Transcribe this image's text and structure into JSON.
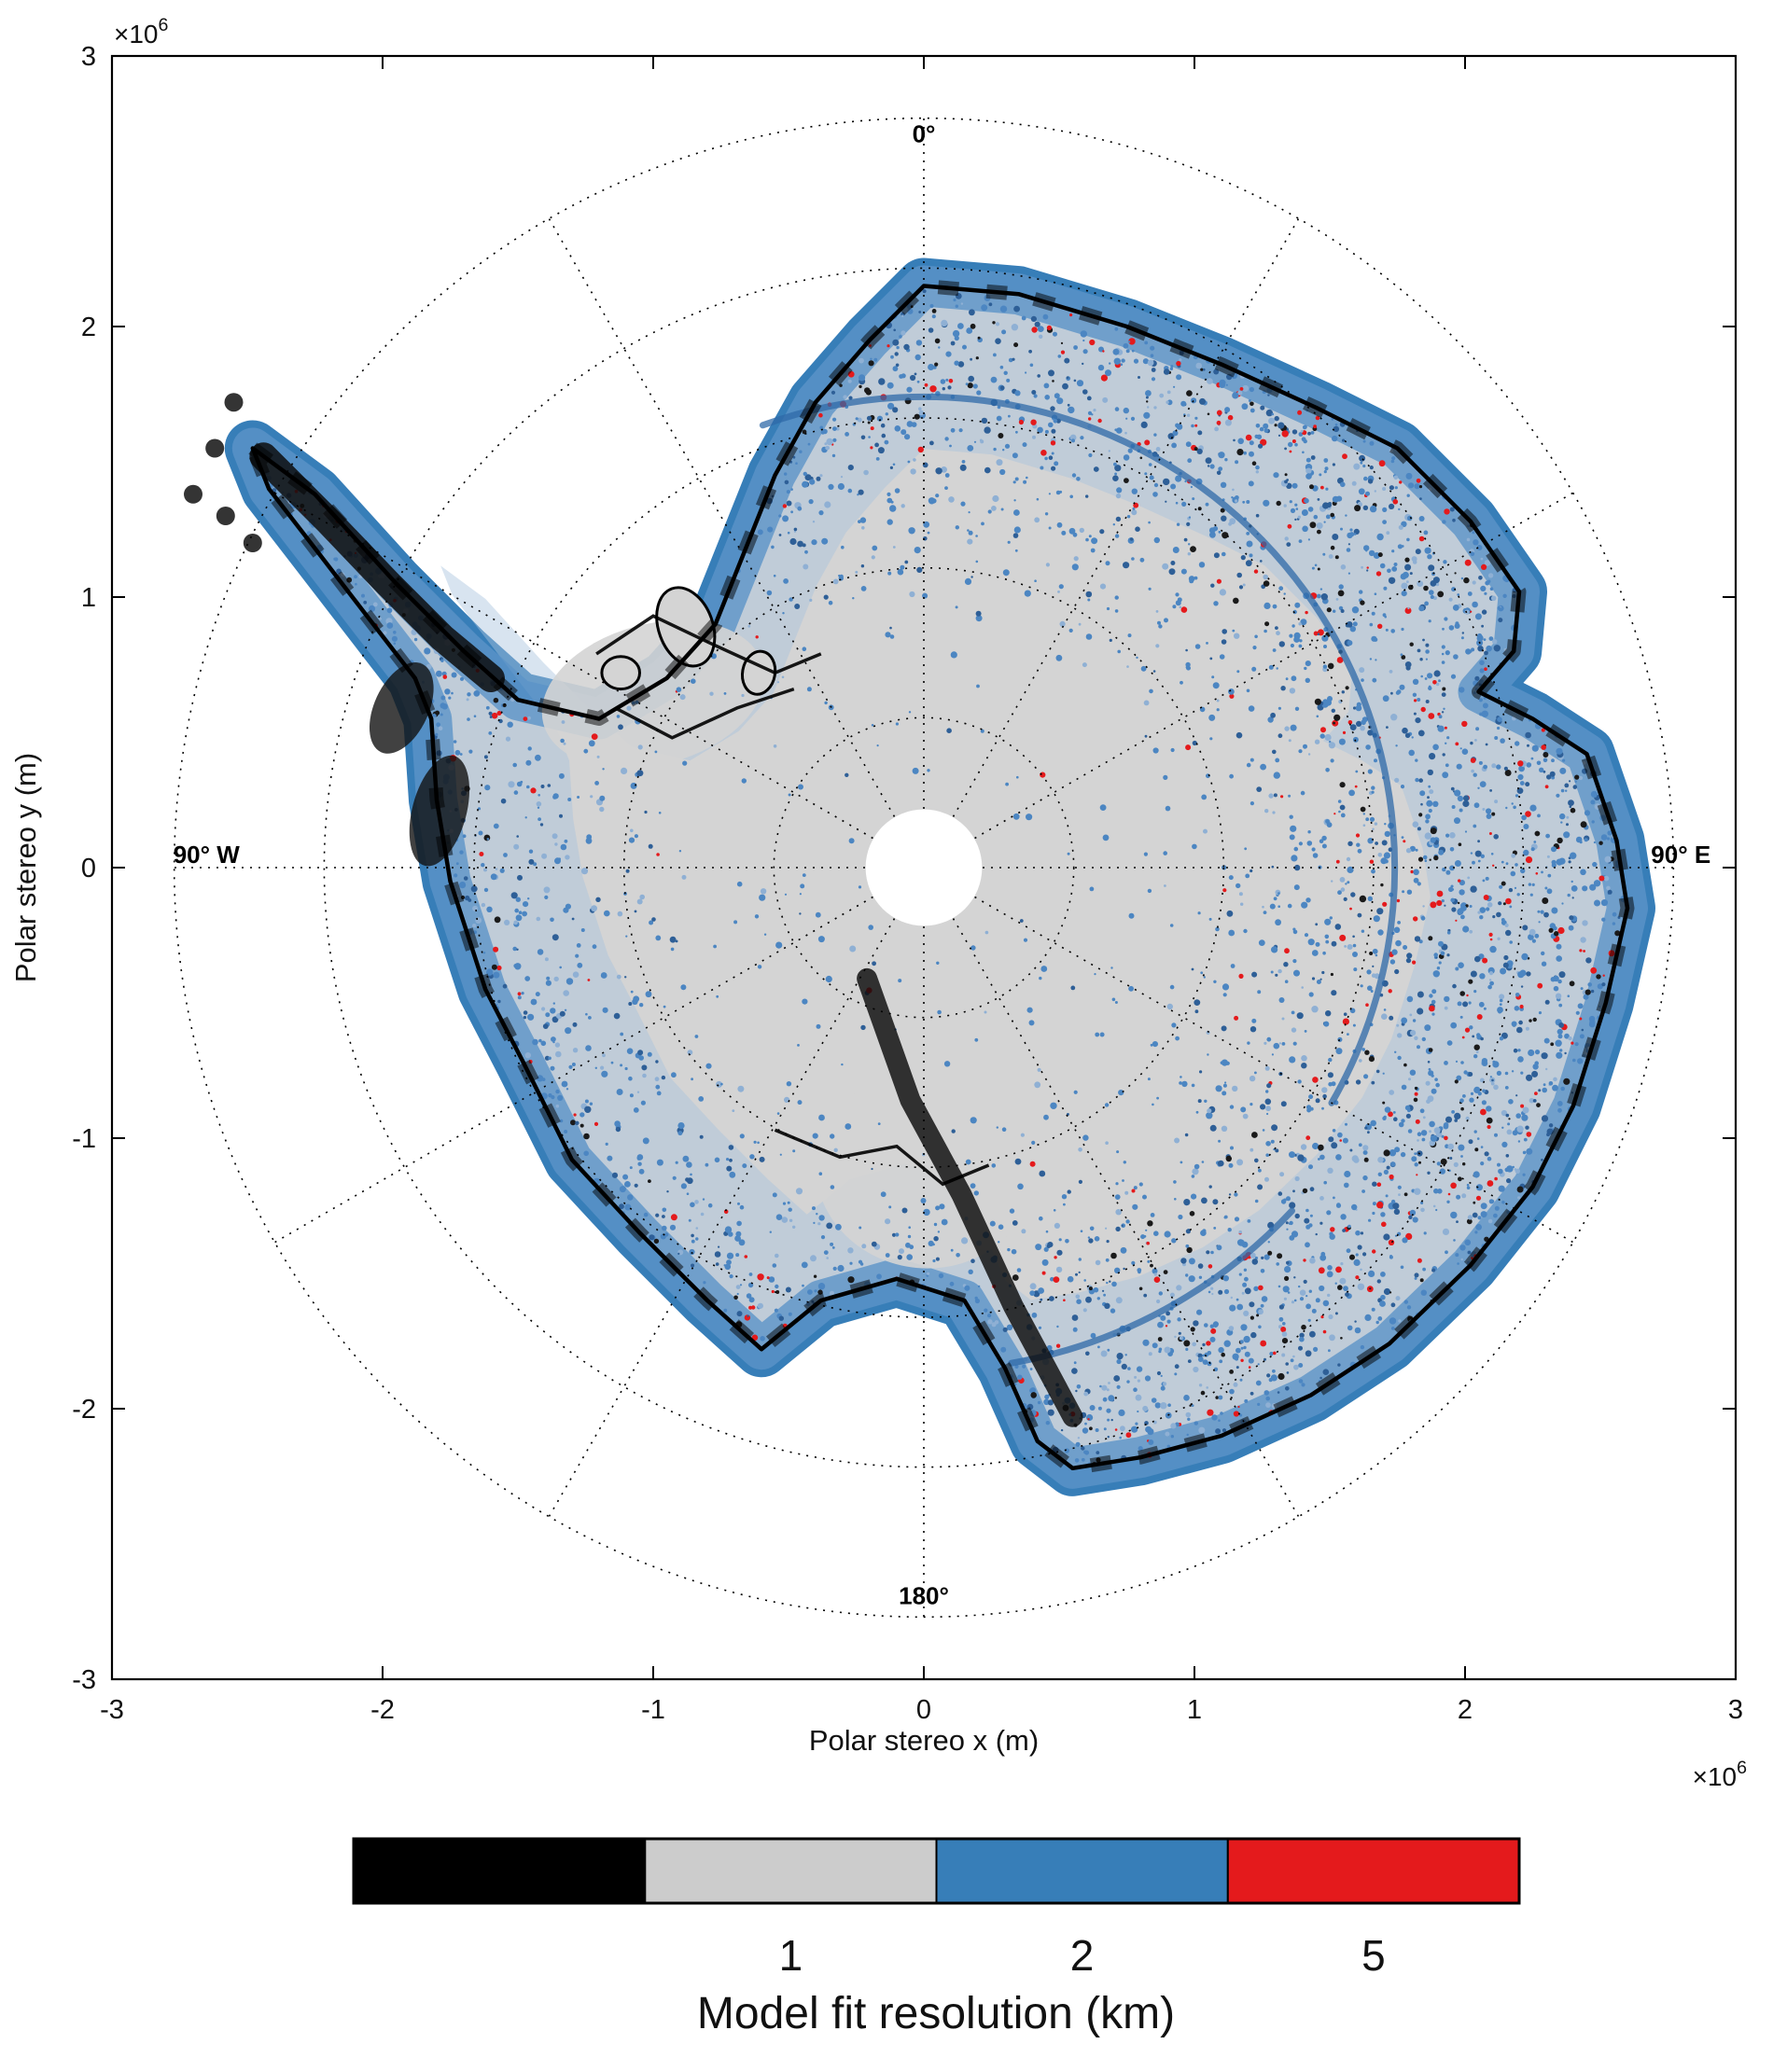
{
  "chart_data": {
    "type": "heatmap",
    "title": "",
    "xlabel": "Polar stereo x (m)",
    "ylabel": "Polar stereo y (m)",
    "axis_exponent": "×10^6",
    "xlim": [
      -3000000,
      3000000
    ],
    "ylim": [
      -3000000,
      3000000
    ],
    "x_ticks": [
      "-3",
      "-2",
      "-1",
      "0",
      "1",
      "2",
      "3"
    ],
    "y_ticks": [
      "-3",
      "-2",
      "-1",
      "0",
      "1",
      "2",
      "3"
    ],
    "grid": "polar dotted graticule over cartesian box",
    "polar_grid": {
      "circle_radii_1e6": [
        0.554,
        1.108,
        1.662,
        2.216,
        2.77
      ],
      "ray_step_deg": 30,
      "labels": [
        {
          "text": "0°",
          "pos": "top"
        },
        {
          "text": "90° E",
          "pos": "right"
        },
        {
          "text": "180°",
          "pos": "bottom"
        },
        {
          "text": "90° W",
          "pos": "left"
        }
      ]
    },
    "colorbar": {
      "label": "Model fit resolution (km)",
      "position": "bottom",
      "segments": [
        {
          "color": "#000000",
          "tick": ""
        },
        {
          "color": "#cccccc",
          "tick": "1"
        },
        {
          "color": "#377eb8",
          "tick": "2"
        },
        {
          "color": "#e41a1c",
          "tick": "5"
        }
      ],
      "sub_divider_fraction": 0.155
    },
    "map": {
      "region": "Antarctica",
      "projection": "polar stereographic",
      "units": "1e6 m",
      "pole_hole_radius_1e6": 0.215,
      "colors": {
        "interior": "#d4d4d4",
        "margin_band": "#377eb8",
        "margin_band_inner": "#5b93c8",
        "ring_wash": "#a9c3dd",
        "speckle_red": "#e41a1c",
        "speckle_dark_blue": "#2e5f97",
        "speckle_blue": "#4c86c2",
        "coast": "#000000"
      },
      "outline_1e6": [
        [
          -2.48,
          1.55
        ],
        [
          -2.25,
          1.38
        ],
        [
          -1.95,
          1.05
        ],
        [
          -1.7,
          0.8
        ],
        [
          -1.5,
          0.62
        ],
        [
          -1.2,
          0.55
        ],
        [
          -0.95,
          0.7
        ],
        [
          -0.77,
          0.9
        ],
        [
          -0.55,
          1.45
        ],
        [
          -0.4,
          1.72
        ],
        [
          -0.2,
          1.95
        ],
        [
          0.0,
          2.15
        ],
        [
          0.35,
          2.12
        ],
        [
          0.75,
          2.0
        ],
        [
          1.1,
          1.86
        ],
        [
          1.45,
          1.7
        ],
        [
          1.75,
          1.55
        ],
        [
          2.02,
          1.28
        ],
        [
          2.2,
          1.02
        ],
        [
          2.18,
          0.8
        ],
        [
          2.05,
          0.65
        ],
        [
          2.25,
          0.55
        ],
        [
          2.45,
          0.42
        ],
        [
          2.56,
          0.1
        ],
        [
          2.6,
          -0.15
        ],
        [
          2.52,
          -0.5
        ],
        [
          2.4,
          -0.88
        ],
        [
          2.25,
          -1.18
        ],
        [
          2.02,
          -1.47
        ],
        [
          1.72,
          -1.76
        ],
        [
          1.43,
          -1.95
        ],
        [
          1.1,
          -2.1
        ],
        [
          0.8,
          -2.18
        ],
        [
          0.55,
          -2.22
        ],
        [
          0.42,
          -2.12
        ],
        [
          0.3,
          -1.85
        ],
        [
          0.15,
          -1.6
        ],
        [
          -0.1,
          -1.52
        ],
        [
          -0.38,
          -1.6
        ],
        [
          -0.6,
          -1.78
        ],
        [
          -0.8,
          -1.6
        ],
        [
          -1.05,
          -1.35
        ],
        [
          -1.3,
          -1.08
        ],
        [
          -1.48,
          -0.72
        ],
        [
          -1.62,
          -0.45
        ],
        [
          -1.75,
          -0.05
        ],
        [
          -1.8,
          0.25
        ],
        [
          -1.82,
          0.55
        ],
        [
          -1.88,
          0.7
        ],
        [
          -2.05,
          0.92
        ],
        [
          -2.25,
          1.18
        ],
        [
          -2.42,
          1.4
        ]
      ],
      "features": {
        "mountain_band": [
          [
            -0.21,
            -0.41
          ],
          [
            -0.05,
            -0.86
          ],
          [
            0.14,
            -1.21
          ],
          [
            0.33,
            -1.62
          ],
          [
            0.55,
            -2.03
          ]
        ],
        "peninsula_band": [
          [
            -2.44,
            1.52
          ],
          [
            -2.2,
            1.28
          ],
          [
            -1.98,
            1.05
          ],
          [
            -1.78,
            0.85
          ],
          [
            -1.6,
            0.7
          ]
        ],
        "grounding_lines": [
          [
            [
              -1.21,
              0.79
            ],
            [
              -1.0,
              0.93
            ],
            [
              -0.79,
              0.83
            ],
            [
              -0.55,
              0.72
            ],
            [
              -0.38,
              0.79
            ]
          ],
          [
            [
              -1.14,
              0.59
            ],
            [
              -0.93,
              0.48
            ],
            [
              -0.69,
              0.59
            ],
            [
              -0.48,
              0.66
            ]
          ],
          [
            [
              -0.55,
              -0.97
            ],
            [
              -0.31,
              -1.07
            ],
            [
              -0.1,
              -1.03
            ],
            [
              0.07,
              -1.17
            ],
            [
              0.24,
              -1.1
            ]
          ]
        ],
        "islands": [
          {
            "x": -0.88,
            "y": 0.89,
            "rx": 0.1,
            "ry": 0.15,
            "rot": -20
          },
          {
            "x": -0.61,
            "y": 0.72,
            "rx": 0.06,
            "ry": 0.08,
            "rot": 10
          },
          {
            "x": -1.12,
            "y": 0.72,
            "rx": 0.07,
            "ry": 0.06,
            "rot": 0
          }
        ],
        "coast_blobs": [
          {
            "x": -1.79,
            "y": 0.21,
            "rx": 0.1,
            "ry": 0.21,
            "rot": 15
          },
          {
            "x": -1.93,
            "y": 0.59,
            "rx": 0.1,
            "ry": 0.18,
            "rot": 25
          }
        ],
        "shelf_patches": [
          {
            "x": -1.0,
            "y": 0.64,
            "rx": 0.42,
            "ry": 0.26,
            "rot": -15
          },
          {
            "x": 0.0,
            "y": -1.12,
            "rx": 0.4,
            "ry": 0.36,
            "rot": 10
          }
        ],
        "tip_dots": [
          [
            -2.55,
            1.72
          ],
          [
            -2.62,
            1.55
          ],
          [
            -2.7,
            1.38
          ],
          [
            -2.58,
            1.3
          ],
          [
            -2.48,
            1.2
          ]
        ],
        "blue_arcs": [
          {
            "r": 1.74,
            "a1": -20,
            "a2": 120
          },
          {
            "r": 1.86,
            "a1": 133,
            "a2": 170
          }
        ]
      }
    }
  }
}
